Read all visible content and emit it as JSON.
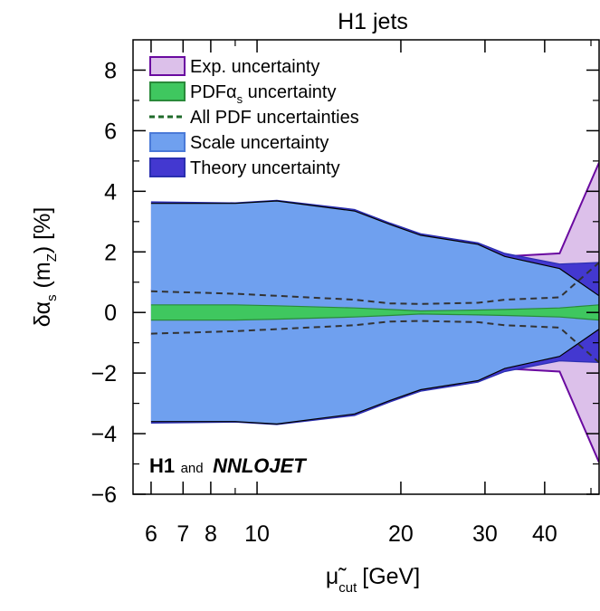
{
  "chart_data": {
    "type": "area",
    "title": "H1 jets",
    "xlabel_main": "μ̃",
    "xlabel_sub": "cut",
    "xlabel_unit": "[GeV]",
    "ylabel_main": "δα",
    "ylabel_sub1": "s",
    "ylabel_mid": " (m",
    "ylabel_sub2": "Z",
    "ylabel_end": ") [%]",
    "xscale": "log",
    "xlim": [
      5.5,
      52
    ],
    "ylim": [
      -6,
      9
    ],
    "x_ticks": [
      6,
      7,
      8,
      10,
      20,
      30,
      40
    ],
    "x_tick_labels": [
      "6",
      "7",
      "8",
      "10",
      "20",
      "30",
      "40"
    ],
    "y_ticks": [
      -6,
      -4,
      -2,
      0,
      2,
      4,
      6,
      8
    ],
    "y_tick_labels": [
      "−6",
      "−4",
      "−2",
      "0",
      "2",
      "4",
      "6",
      "8"
    ],
    "x": [
      6,
      9,
      11,
      16,
      19,
      22,
      29,
      33,
      43,
      52
    ],
    "series": [
      {
        "name": "Exp. uncertainty",
        "color": "#dcc0ea",
        "edge": "#6a0aa0",
        "upper": [
          0.75,
          0.8,
          0.9,
          1.1,
          1.25,
          1.45,
          1.7,
          1.85,
          1.95,
          4.95
        ],
        "lower": [
          -0.75,
          -0.8,
          -0.9,
          -1.1,
          -1.25,
          -1.45,
          -1.7,
          -1.85,
          -1.95,
          -4.95
        ]
      },
      {
        "name": "Theory uncertainty",
        "color": "#4338d0",
        "edge": "#2a2fb0",
        "upper": [
          3.65,
          3.62,
          3.7,
          3.4,
          2.95,
          2.6,
          2.3,
          1.95,
          1.6,
          1.65
        ],
        "lower": [
          -3.65,
          -3.62,
          -3.7,
          -3.4,
          -2.95,
          -2.6,
          -2.3,
          -1.95,
          -1.6,
          -1.65
        ]
      },
      {
        "name": "Scale uncertainty",
        "color": "#6fa0ef",
        "edge": "#000000",
        "upper": [
          3.6,
          3.6,
          3.68,
          3.35,
          2.9,
          2.55,
          2.25,
          1.85,
          1.45,
          0.55
        ],
        "lower": [
          -3.6,
          -3.6,
          -3.68,
          -3.35,
          -2.9,
          -2.55,
          -2.25,
          -1.85,
          -1.45,
          -0.55
        ]
      },
      {
        "name": "PDFα uncertainty",
        "legend_sub": "s",
        "color": "#3fc75f",
        "edge": "#2a8a3a",
        "upper": [
          0.25,
          0.25,
          0.22,
          0.15,
          0.1,
          0.05,
          0.08,
          0.1,
          0.15,
          0.25
        ],
        "lower": [
          -0.25,
          -0.25,
          -0.22,
          -0.15,
          -0.1,
          -0.05,
          -0.08,
          -0.1,
          -0.15,
          -0.25
        ]
      },
      {
        "name": "All PDF uncertainties",
        "color": "#1f6a2a",
        "style": "dashed",
        "upper": [
          0.7,
          0.62,
          0.55,
          0.42,
          0.3,
          0.28,
          0.32,
          0.42,
          0.5,
          1.65
        ],
        "lower": [
          -0.7,
          -0.62,
          -0.55,
          -0.42,
          -0.3,
          -0.28,
          -0.32,
          -0.42,
          -0.5,
          -1.65
        ]
      }
    ],
    "annotation": {
      "text1": "H1",
      "text2": "and",
      "text3": "NNLOJET"
    },
    "legend_placement": "top-left"
  }
}
